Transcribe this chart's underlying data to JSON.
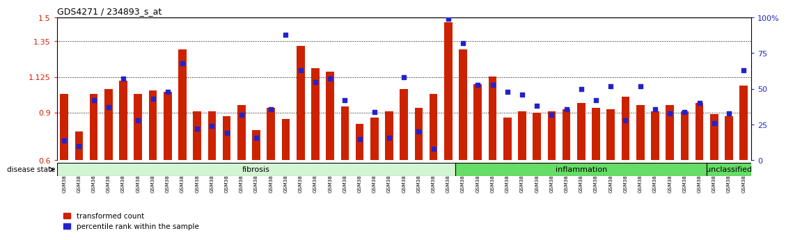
{
  "title": "GDS4271 / 234893_s_at",
  "samples": [
    "GSM380382",
    "GSM380383",
    "GSM380384",
    "GSM380385",
    "GSM380386",
    "GSM380387",
    "GSM380388",
    "GSM380389",
    "GSM380390",
    "GSM380391",
    "GSM380392",
    "GSM380393",
    "GSM380394",
    "GSM380395",
    "GSM380396",
    "GSM380397",
    "GSM380398",
    "GSM380399",
    "GSM380400",
    "GSM380401",
    "GSM380402",
    "GSM380403",
    "GSM380404",
    "GSM380405",
    "GSM380406",
    "GSM380407",
    "GSM380408",
    "GSM380409",
    "GSM380410",
    "GSM380411",
    "GSM380412",
    "GSM380413",
    "GSM380414",
    "GSM380415",
    "GSM380416",
    "GSM380417",
    "GSM380418",
    "GSM380419",
    "GSM380420",
    "GSM380421",
    "GSM380422",
    "GSM380423",
    "GSM380424",
    "GSM380425",
    "GSM380426",
    "GSM380427",
    "GSM380428"
  ],
  "red_values": [
    1.02,
    0.78,
    1.02,
    1.05,
    1.1,
    1.02,
    1.04,
    1.03,
    1.3,
    0.91,
    0.91,
    0.88,
    0.95,
    0.79,
    0.93,
    0.86,
    1.32,
    1.18,
    1.16,
    0.94,
    0.83,
    0.87,
    0.91,
    1.05,
    0.93,
    1.02,
    1.47,
    1.3,
    1.08,
    1.13,
    0.87,
    0.91,
    0.9,
    0.91,
    0.92,
    0.96,
    0.93,
    0.92,
    1.0,
    0.95,
    0.91,
    0.95,
    0.91,
    0.96,
    0.89,
    0.88,
    1.07
  ],
  "blue_values": [
    14,
    10,
    42,
    37,
    57,
    28,
    43,
    48,
    68,
    22,
    24,
    19,
    32,
    16,
    36,
    88,
    63,
    55,
    57,
    42,
    15,
    34,
    16,
    58,
    20,
    8,
    99,
    82,
    53,
    53,
    48,
    46,
    38,
    32,
    36,
    50,
    42,
    52,
    28,
    52,
    36,
    33,
    34,
    40,
    26,
    33,
    63
  ],
  "ylim_left": [
    0.6,
    1.5
  ],
  "ylim_right": [
    0,
    100
  ],
  "yticks_left": [
    0.6,
    0.9,
    1.125,
    1.35,
    1.5
  ],
  "ytick_labels_left": [
    "0.6",
    "0.9",
    "1.125",
    "1.35",
    "1.5"
  ],
  "yticks_right": [
    0,
    25,
    50,
    75,
    100
  ],
  "ytick_labels_right": [
    "0",
    "25",
    "50",
    "75",
    "100%"
  ],
  "hlines": [
    0.9,
    1.125,
    1.35
  ],
  "bar_color": "#cc2200",
  "dot_color": "#2222cc",
  "bar_bottom": 0.6,
  "groups": [
    {
      "label": "fibrosis",
      "start": 0,
      "end": 26,
      "color": "#d4f5d4"
    },
    {
      "label": "inflammation",
      "start": 27,
      "end": 43,
      "color": "#66dd66"
    },
    {
      "label": "unclassified",
      "start": 44,
      "end": 46,
      "color": "#66dd66"
    }
  ],
  "disease_state_label": "disease state",
  "legend_red": "transformed count",
  "legend_blue": "percentile rank within the sample",
  "bg_color": "#ffffff"
}
